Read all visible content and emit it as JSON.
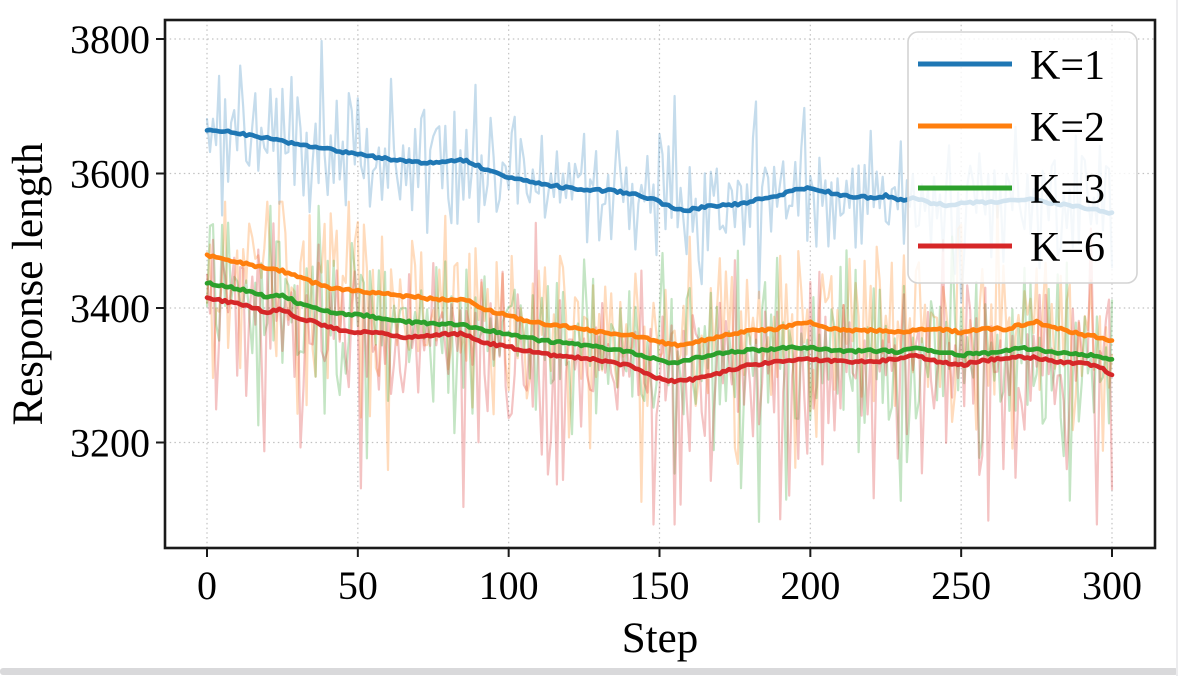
{
  "page": {
    "background": "#ffffff",
    "bottom_bar_color": "#d9d9db"
  },
  "chart_data": {
    "type": "line",
    "title": "",
    "xlabel": "Step",
    "ylabel": "Response length",
    "x_ticks": [
      0,
      50,
      100,
      150,
      200,
      250,
      300
    ],
    "y_ticks": [
      3200,
      3400,
      3600,
      3800
    ],
    "xlim": [
      -14,
      314
    ],
    "ylim": [
      3043,
      3828
    ],
    "grid": "dotted",
    "legend_position": "upper right",
    "x_step": 5,
    "note": "bold lines are smoothed averages; faint lines are raw per-step values",
    "series": [
      {
        "name": "K=1",
        "color": "#1f77b4",
        "values": [
          3666,
          3663,
          3660,
          3656,
          3652,
          3648,
          3643,
          3639,
          3636,
          3632,
          3628,
          3625,
          3622,
          3619,
          3617,
          3616,
          3617,
          3620,
          3611,
          3601,
          3594,
          3589,
          3585,
          3582,
          3578,
          3576,
          3575,
          3574,
          3571,
          3566,
          3558,
          3547,
          3546,
          3550,
          3552,
          3554,
          3558,
          3564,
          3568,
          3575,
          3578,
          3574,
          3568,
          3565,
          3564,
          3567,
          3561,
          3564,
          3556,
          3553,
          3556,
          3557,
          3558,
          3560,
          3562,
          3560,
          3556,
          3553,
          3550,
          3546,
          3540
        ],
        "raw_noise": {
          "seed": 7,
          "amp": 58,
          "down_spike": 70,
          "up_spike": 85,
          "down_p": 0.12,
          "up_p": 0.15,
          "max": 3797,
          "min": 3408,
          "opacity": 0.26
        }
      },
      {
        "name": "K=2",
        "color": "#ff7f0e",
        "values": [
          3479,
          3474,
          3469,
          3463,
          3459,
          3455,
          3447,
          3438,
          3431,
          3427,
          3425,
          3423,
          3421,
          3418,
          3416,
          3413,
          3412,
          3414,
          3402,
          3394,
          3389,
          3382,
          3378,
          3375,
          3372,
          3368,
          3364,
          3362,
          3360,
          3356,
          3350,
          3345,
          3347,
          3352,
          3358,
          3362,
          3366,
          3367,
          3370,
          3376,
          3378,
          3371,
          3368,
          3367,
          3367,
          3366,
          3364,
          3367,
          3370,
          3367,
          3364,
          3367,
          3369,
          3369,
          3375,
          3379,
          3372,
          3366,
          3361,
          3357,
          3350
        ],
        "raw_noise": {
          "seed": 13,
          "amp": 62,
          "down_spike": 130,
          "up_spike": 95,
          "down_p": 0.2,
          "up_p": 0.16,
          "max": 3558,
          "min": 3082,
          "opacity": 0.28
        }
      },
      {
        "name": "K=3",
        "color": "#2ca02c",
        "values": [
          3437,
          3433,
          3429,
          3423,
          3417,
          3420,
          3408,
          3400,
          3395,
          3392,
          3390,
          3387,
          3383,
          3380,
          3378,
          3377,
          3376,
          3375,
          3369,
          3365,
          3362,
          3357,
          3352,
          3350,
          3348,
          3345,
          3342,
          3338,
          3334,
          3329,
          3322,
          3318,
          3323,
          3328,
          3332,
          3335,
          3337,
          3338,
          3340,
          3341,
          3342,
          3338,
          3337,
          3336,
          3337,
          3336,
          3335,
          3341,
          3336,
          3333,
          3330,
          3332,
          3333,
          3336,
          3340,
          3339,
          3334,
          3333,
          3331,
          3330,
          3323
        ],
        "raw_noise": {
          "seed": 21,
          "amp": 62,
          "down_spike": 130,
          "up_spike": 95,
          "down_p": 0.2,
          "up_p": 0.16,
          "max": 3552,
          "min": 3082,
          "opacity": 0.28
        }
      },
      {
        "name": "K=6",
        "color": "#d62728",
        "values": [
          3415,
          3411,
          3407,
          3400,
          3394,
          3398,
          3385,
          3380,
          3372,
          3366,
          3364,
          3365,
          3360,
          3357,
          3358,
          3360,
          3361,
          3362,
          3352,
          3346,
          3342,
          3337,
          3333,
          3330,
          3327,
          3325,
          3323,
          3318,
          3314,
          3305,
          3295,
          3290,
          3293,
          3298,
          3303,
          3310,
          3315,
          3318,
          3320,
          3323,
          3325,
          3322,
          3320,
          3321,
          3320,
          3322,
          3325,
          3330,
          3322,
          3318,
          3315,
          3320,
          3323,
          3325,
          3327,
          3326,
          3321,
          3319,
          3318,
          3315,
          3300
        ],
        "raw_noise": {
          "seed": 42,
          "amp": 62,
          "down_spike": 135,
          "up_spike": 90,
          "down_p": 0.2,
          "up_p": 0.14,
          "max": 3548,
          "min": 3078,
          "opacity": 0.28
        }
      }
    ],
    "style": {
      "frame_color": "#1a1a1a",
      "grid_color": "#c2c2c2",
      "tick_font_px": 40,
      "label_font_px": 43,
      "legend_font_px": 42,
      "legend_border_color": "#d4d4d4",
      "legend_fill": "rgba(255,255,255,0.8)"
    }
  }
}
